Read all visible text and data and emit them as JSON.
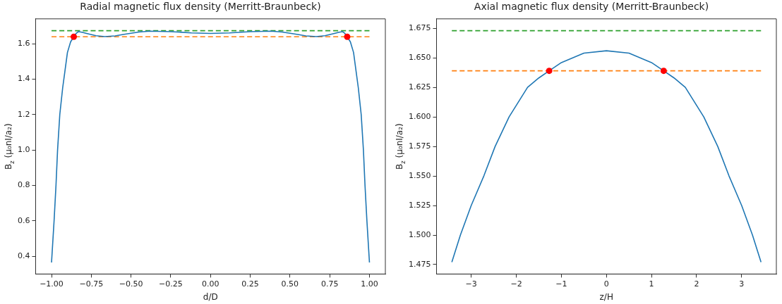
{
  "chart_data": [
    {
      "type": "line",
      "title": "Radial magnetic flux density (Merritt-Braunbeck)",
      "xlabel": "d/D",
      "ylabel": "B$_{z}$ (μ₀nI/a₂)",
      "xlim": [
        -1.1,
        1.1
      ],
      "ylim": [
        0.3,
        1.74
      ],
      "xticks": [
        {
          "value": -1,
          "label": "−1.00"
        },
        {
          "value": -0.75,
          "label": "−0.75"
        },
        {
          "value": -0.5,
          "label": "−0.50"
        },
        {
          "value": -0.25,
          "label": "−0.25"
        },
        {
          "value": 0,
          "label": "0.00"
        },
        {
          "value": 0.25,
          "label": "0.25"
        },
        {
          "value": 0.5,
          "label": "0.50"
        },
        {
          "value": 0.75,
          "label": "0.75"
        },
        {
          "value": 1,
          "label": "1.00"
        }
      ],
      "yticks": [
        0.4,
        0.6,
        0.8,
        {
          "value": 1,
          "label": "1.0"
        },
        1.2,
        1.4,
        1.6
      ],
      "grid": false,
      "legend": false,
      "series": [
        {
          "type": "line",
          "color": "#1f77b4",
          "marker": "none",
          "line_style": "solid",
          "x": [
            -1,
            -0.984,
            -0.972,
            -0.962,
            -0.948,
            -0.93,
            -0.915,
            -0.9,
            -0.88,
            -0.86,
            -0.845,
            -0.83,
            -0.81,
            -0.78,
            -0.72,
            -0.665,
            -0.6,
            -0.55,
            -0.45,
            -0.38,
            -0.25,
            -0.12,
            0,
            0.12,
            0.25,
            0.38,
            0.45,
            0.55,
            0.6,
            0.665,
            0.72,
            0.78,
            0.81,
            0.83,
            0.845,
            0.86,
            0.88,
            0.9,
            0.915,
            0.93,
            0.948,
            0.962,
            0.972,
            0.984,
            1
          ],
          "values": [
            0.365,
            0.6,
            0.8,
            1.0,
            1.2,
            1.35,
            1.45,
            1.55,
            1.61,
            1.639,
            1.658,
            1.668,
            1.665,
            1.658,
            1.645,
            1.64,
            1.644,
            1.652,
            1.666,
            1.671,
            1.668,
            1.661,
            1.658,
            1.661,
            1.668,
            1.671,
            1.666,
            1.652,
            1.644,
            1.64,
            1.645,
            1.658,
            1.665,
            1.668,
            1.658,
            1.639,
            1.61,
            1.55,
            1.45,
            1.35,
            1.2,
            1.0,
            0.8,
            0.6,
            0.365
          ]
        },
        {
          "type": "line",
          "color": "#2ca02c",
          "marker": "none",
          "line_style": "dashed",
          "x": [
            -1,
            1
          ],
          "values": [
            1.673,
            1.673
          ]
        },
        {
          "type": "line",
          "color": "#ff7f0e",
          "marker": "none",
          "line_style": "dashed",
          "x": [
            -1,
            1
          ],
          "values": [
            1.639,
            1.639
          ]
        },
        {
          "type": "scatter",
          "color": "#ff0000",
          "marker": "circle",
          "x": [
            -0.86,
            0.86
          ],
          "values": [
            1.639,
            1.639
          ]
        }
      ]
    },
    {
      "type": "line",
      "title": "Axial magnetic flux density (Merritt-Braunbeck)",
      "xlabel": "z/H",
      "ylabel": "B$_{z}$ (μ₀nI/a₂)",
      "xlim": [
        -3.77,
        3.77
      ],
      "ylim": [
        1.467,
        1.683
      ],
      "xticks": [
        {
          "value": -3,
          "label": "−3"
        },
        {
          "value": -2,
          "label": "−2"
        },
        {
          "value": -1,
          "label": "−1"
        },
        0,
        1,
        2,
        3
      ],
      "yticks": [
        1.475,
        {
          "value": 1.5,
          "label": "1.500"
        },
        1.525,
        {
          "value": 1.55,
          "label": "1.550"
        },
        1.575,
        {
          "value": 1.6,
          "label": "1.600"
        },
        1.625,
        {
          "value": 1.65,
          "label": "1.650"
        },
        1.675
      ],
      "grid": false,
      "legend": false,
      "series": [
        {
          "type": "line",
          "color": "#1f77b4",
          "marker": "none",
          "line_style": "solid",
          "x": [
            -3.43,
            -3.24,
            -3.0,
            -2.72,
            -2.47,
            -2.16,
            -1.75,
            -1.5,
            -1.27,
            -1.0,
            -0.5,
            0,
            0.5,
            1.0,
            1.27,
            1.5,
            1.75,
            2.16,
            2.47,
            2.72,
            3.0,
            3.24,
            3.43
          ],
          "values": [
            1.477,
            1.5,
            1.525,
            1.55,
            1.575,
            1.6,
            1.625,
            1.633,
            1.639,
            1.646,
            1.654,
            1.656,
            1.654,
            1.646,
            1.639,
            1.633,
            1.625,
            1.6,
            1.575,
            1.55,
            1.525,
            1.5,
            1.477
          ]
        },
        {
          "type": "line",
          "color": "#2ca02c",
          "marker": "none",
          "line_style": "dashed",
          "x": [
            -3.43,
            3.43
          ],
          "values": [
            1.673,
            1.673
          ]
        },
        {
          "type": "line",
          "color": "#ff7f0e",
          "marker": "none",
          "line_style": "dashed",
          "x": [
            -3.43,
            3.43
          ],
          "values": [
            1.639,
            1.639
          ]
        },
        {
          "type": "scatter",
          "color": "#ff0000",
          "marker": "circle",
          "x": [
            -1.27,
            1.27
          ],
          "values": [
            1.639,
            1.639
          ]
        }
      ]
    }
  ]
}
